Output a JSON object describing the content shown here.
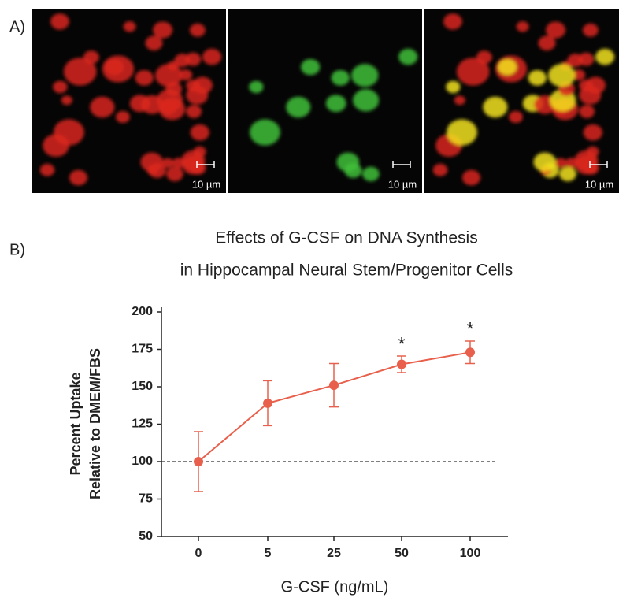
{
  "panel_a": {
    "label": "A)",
    "scale_labels": [
      "10 µm",
      "10 µm",
      "10 µm"
    ]
  },
  "chart_data": {
    "type": "line",
    "panel_label": "B)",
    "title": [
      "Effects of G-CSF on DNA Synthesis",
      "in Hippocampal Neural Stem/Progenitor Cells"
    ],
    "x_label": "G-CSF (ng/mL)",
    "y_label": [
      "Percent Uptake",
      "Relative to DMEM/FBS"
    ],
    "categories": [
      "0",
      "5",
      "25",
      "50",
      "100"
    ],
    "values": [
      100,
      139,
      151,
      165,
      173
    ],
    "errors": [
      20,
      15,
      14.5,
      5.5,
      7.5
    ],
    "significance": [
      null,
      null,
      null,
      "*",
      "*"
    ],
    "color": "#e8604c",
    "reference_line": 100,
    "ylim": [
      50,
      200
    ],
    "yticks": [
      50,
      75,
      100,
      125,
      150,
      175,
      200
    ]
  }
}
